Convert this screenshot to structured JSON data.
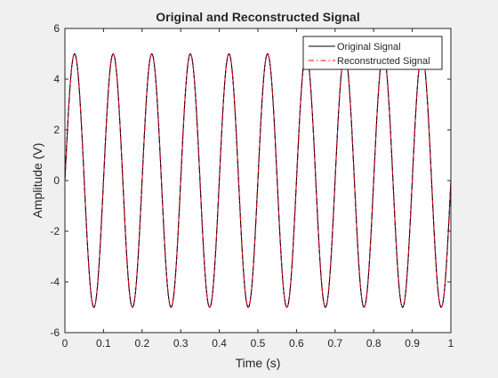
{
  "chart_data": {
    "type": "line",
    "title": "Original and Reconstructed Signal",
    "xlabel": "Time (s)",
    "ylabel": "Amplitude (V)",
    "xlim": [
      0,
      1
    ],
    "ylim": [
      -6,
      6
    ],
    "xticks": [
      "0",
      "0.1",
      "0.2",
      "0.3",
      "0.4",
      "0.5",
      "0.6",
      "0.7",
      "0.8",
      "0.9",
      "1"
    ],
    "yticks": [
      "-6",
      "-4",
      "-2",
      "0",
      "2",
      "4",
      "6"
    ],
    "grid": false,
    "legend_position": "top-right",
    "signal": {
      "amplitude": 5,
      "frequency_hz": 10,
      "phase": 0
    },
    "series": [
      {
        "name": "Original Signal",
        "color": "#000000",
        "style": "solid"
      },
      {
        "name": "Reconstructed Signal",
        "color": "#ff0000",
        "style": "dash-dot"
      }
    ]
  },
  "colors": {
    "figure_bg": "#f0f0f0",
    "axes_bg": "#ffffff",
    "axis": "#262626",
    "blue_under": "#0000ff"
  }
}
